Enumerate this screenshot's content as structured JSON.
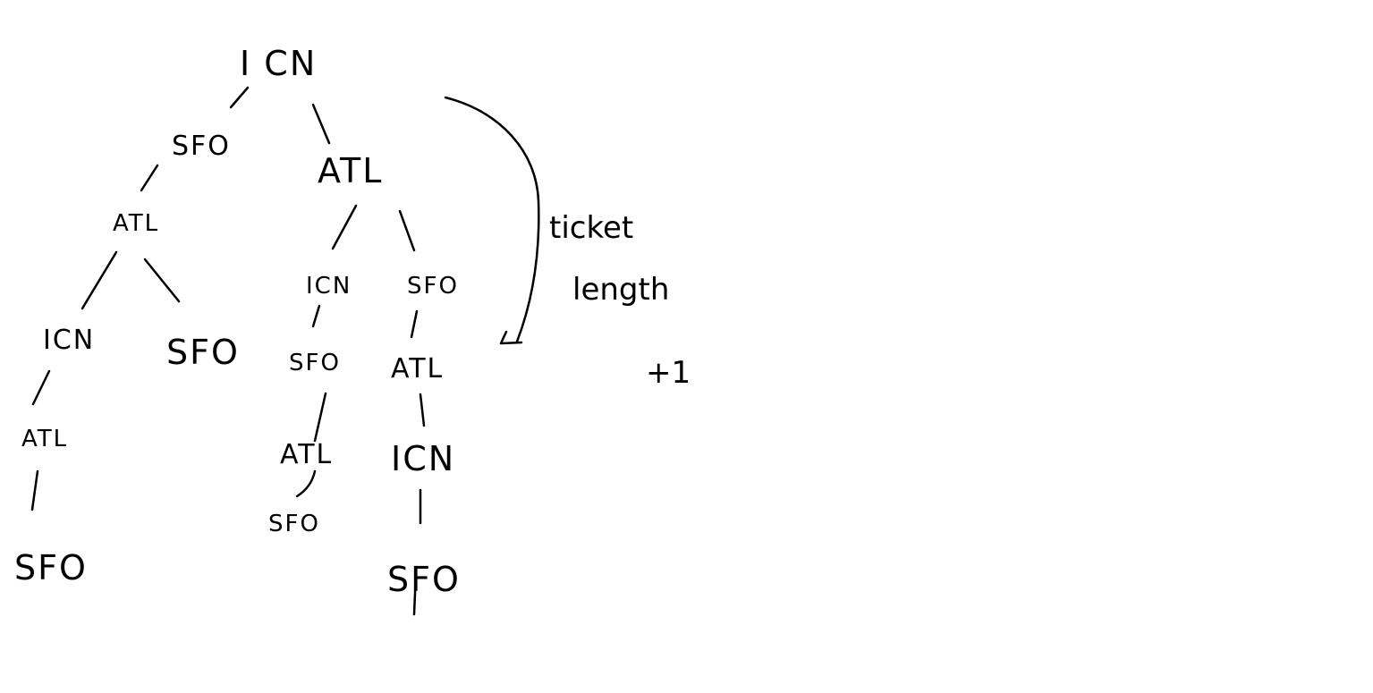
{
  "tree": {
    "root": "I CN",
    "nodes": [
      "SFO",
      "ATL",
      "ATL",
      "ICN",
      "SFO",
      "ICN",
      "SFO",
      "SFO",
      "ATL",
      "ATL",
      "ATL",
      "ICN",
      "SFO",
      "SFO",
      "SFO"
    ]
  },
  "notes": {
    "line1": "ticket",
    "line2": "length",
    "line3": "+1"
  }
}
